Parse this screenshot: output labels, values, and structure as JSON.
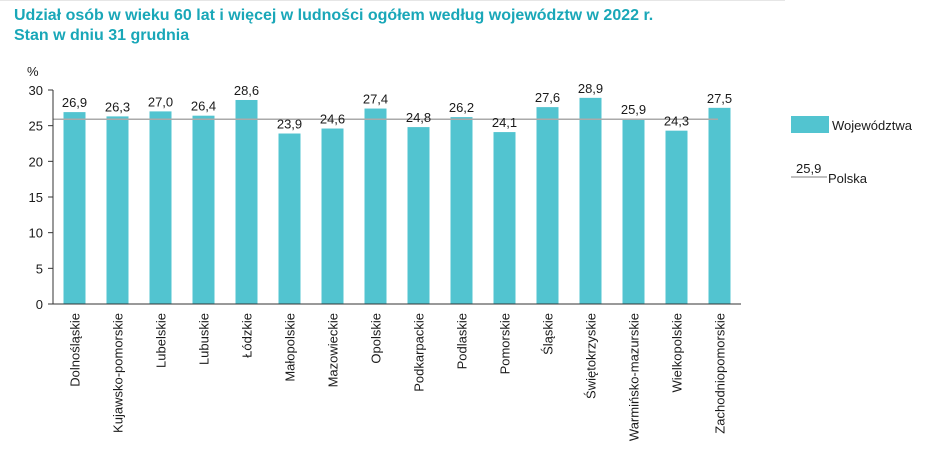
{
  "title_line1": "Udział osób w wieku 60 lat i więcej w ludności ogółem według województw w 2022 r.",
  "title_line2": "Stan w dniu 31 grudnia",
  "colors": {
    "bar": "#52c4d0",
    "ref": "#aaaaaa",
    "title": "#19a7b8",
    "grid": "#d9d9d9"
  },
  "chart_data": {
    "type": "bar",
    "ylabel": "%",
    "ylim": [
      0,
      30
    ],
    "yticks": [
      0,
      5,
      10,
      15,
      20,
      25,
      30
    ],
    "categories": [
      "Dolnośląskie",
      "Kujawsko-pomorskie",
      "Lubelskie",
      "Lubuskie",
      "Łódzkie",
      "Małopolskie",
      "Mazowieckie",
      "Opolskie",
      "Podkarpackie",
      "Podlaskie",
      "Pomorskie",
      "Śląskie",
      "Świętokrzyskie",
      "Warmińsko-mazurskie",
      "Wielkopolskie",
      "Zachodniopomorskie"
    ],
    "value_labels": [
      "26,9",
      "26,3",
      "27,0",
      "26,4",
      "28,6",
      "23,9",
      "24,6",
      "27,4",
      "24,8",
      "26,2",
      "24,1",
      "27,6",
      "28,9",
      "25,9",
      "24,3",
      "27,5"
    ],
    "series": [
      {
        "name": "Województwa",
        "values": [
          26.9,
          26.3,
          27.0,
          26.4,
          28.6,
          23.9,
          24.6,
          27.4,
          24.8,
          26.2,
          24.1,
          27.6,
          28.9,
          25.9,
          24.3,
          27.5
        ]
      }
    ],
    "reference_line": {
      "name": "Polska",
      "value": 25.9,
      "label": "25,9"
    },
    "legend": {
      "position": "right"
    },
    "grid": false
  }
}
